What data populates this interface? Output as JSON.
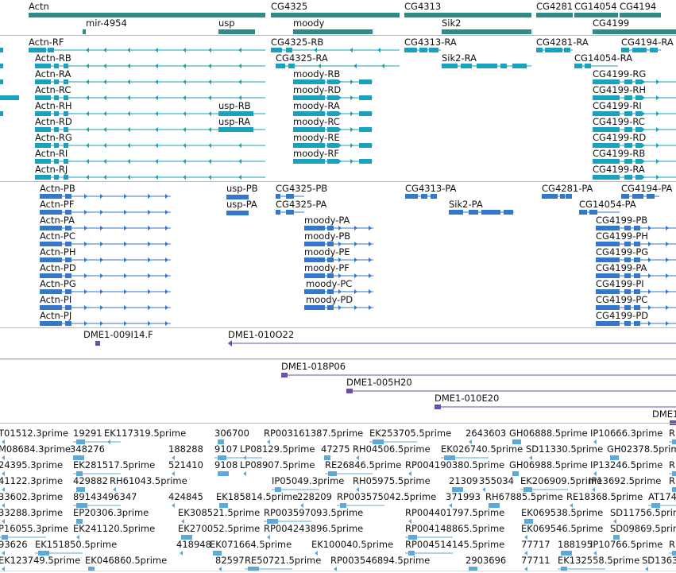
{
  "colors": {
    "gene": "#2e8b87",
    "mrna": "#1aa1bd",
    "protein": "#3377cc",
    "bac": "#6a4fb0",
    "est": "#5aaadc",
    "divider": "#b8b8b8"
  },
  "tracks": {
    "genes": {
      "features": [
        {
          "label": "Actn"
        },
        {
          "label": "mir-4954"
        },
        {
          "label": "usp"
        },
        {
          "label": "CG4325"
        },
        {
          "label": "moody"
        },
        {
          "label": "CG4313"
        },
        {
          "label": "Sik2"
        },
        {
          "label": "CG4281"
        },
        {
          "label": "CG14054"
        },
        {
          "label": "CG4194"
        },
        {
          "label": "CG4199"
        }
      ]
    },
    "transcripts": {
      "features": [
        {
          "label": "Actn-RF"
        },
        {
          "label": "Actn-RB"
        },
        {
          "label": "Actn-RA"
        },
        {
          "label": "Actn-RC"
        },
        {
          "label": "Actn-RH"
        },
        {
          "label": "Actn-RD"
        },
        {
          "label": "Actn-RG"
        },
        {
          "label": "Actn-RI"
        },
        {
          "label": "Actn-RJ"
        },
        {
          "label": "usp-RB"
        },
        {
          "label": "usp-RA"
        },
        {
          "label": "CG4325-RB"
        },
        {
          "label": "CG4325-RA"
        },
        {
          "label": "moody-RB"
        },
        {
          "label": "moody-RD"
        },
        {
          "label": "moody-RA"
        },
        {
          "label": "moody-RC"
        },
        {
          "label": "moody-RE"
        },
        {
          "label": "moody-RF"
        },
        {
          "label": "CG4313-RA"
        },
        {
          "label": "Sik2-RA"
        },
        {
          "label": "CG4281-RA"
        },
        {
          "label": "CG4194-RA"
        },
        {
          "label": "CG14054-RA"
        },
        {
          "label": "CG4199-RG"
        },
        {
          "label": "CG4199-RH"
        },
        {
          "label": "CG4199-RI"
        },
        {
          "label": "CG4199-RC"
        },
        {
          "label": "CG4199-RD"
        },
        {
          "label": "CG4199-RB"
        },
        {
          "label": "CG4199-RA"
        }
      ]
    },
    "proteins": {
      "features": [
        {
          "label": "Actn-PB"
        },
        {
          "label": "Actn-PF"
        },
        {
          "label": "Actn-PA"
        },
        {
          "label": "Actn-PC"
        },
        {
          "label": "Actn-PH"
        },
        {
          "label": "Actn-PD"
        },
        {
          "label": "Actn-PG"
        },
        {
          "label": "Actn-PI"
        },
        {
          "label": "Actn-PJ"
        },
        {
          "label": "usp-PB"
        },
        {
          "label": "usp-PA"
        },
        {
          "label": "CG4325-PB"
        },
        {
          "label": "CG4325-PA"
        },
        {
          "label": "moody-PA"
        },
        {
          "label": "moody-PB"
        },
        {
          "label": "moody-PE"
        },
        {
          "label": "moody-PF"
        },
        {
          "label": "moody-PC"
        },
        {
          "label": "moody-PD"
        },
        {
          "label": "CG4313-PA"
        },
        {
          "label": "Sik2-PA"
        },
        {
          "label": "CG4281-PA"
        },
        {
          "label": "CG4194-PA"
        },
        {
          "label": "CG14054-PA"
        },
        {
          "label": "CG4199-PB"
        },
        {
          "label": "CG4199-PH"
        },
        {
          "label": "CG4199-PG"
        },
        {
          "label": "CG4199-PA"
        },
        {
          "label": "CG4199-PI"
        },
        {
          "label": "CG4199-PC"
        },
        {
          "label": "CG4199-PD"
        }
      ]
    },
    "bacs": {
      "features": [
        {
          "label": "DME1-009I14.F"
        },
        {
          "label": "DME1-010O22"
        },
        {
          "label": "DME1-018P06"
        },
        {
          "label": "DME1-005H20"
        },
        {
          "label": "DME1-010E20"
        },
        {
          "label": "DME1"
        }
      ]
    },
    "ests": {
      "rows": [
        [
          "T01512.3prime",
          "19291",
          "EK117319.5prime",
          "306700",
          "RP003161387.5prime",
          "EK253705.5prime",
          "2643603",
          "GH06888.5prime",
          "IP10666.3prime",
          "R"
        ],
        [
          "M08684.3prime",
          "348276",
          "188288",
          "9107",
          "LP08129.5prime",
          "47275",
          "RH04506.5prime",
          "EK026740.5prime",
          "SD11330.5prime",
          "GH02378.5prime"
        ],
        [
          "24395.3prime",
          "EK281517.5prime",
          "521410",
          "9108",
          "LP08907.5prime",
          "RE26846.5prime",
          "RP004190380.5prime",
          "GH06988.5prime",
          "IP13246.5prime",
          "R"
        ],
        [
          "41122.3prime",
          "429882",
          "RH61043.5prime",
          "IP05049.3prime",
          "RH05975.5prime",
          "21309",
          "355034",
          "EK206909.5prime",
          "IP13692.5prime",
          "R"
        ],
        [
          "33602.3prime",
          "89143496347",
          "424845",
          "EK185814.5prime",
          "228209",
          "RP003575042.5prime",
          "371993",
          "RH67885.5prime",
          "RE18368.5prime",
          "AT174"
        ],
        [
          "33288.3prime",
          "EP20306.3prime",
          "EK308521.5prime",
          "RP003597093.5prime",
          "RP004401797.5prime",
          "EK069538.5prime",
          "SD11756.5prime"
        ],
        [
          "P16055.3prime",
          "EK241120.5prime",
          "EK270052.5prime",
          "RP004243896.5prime",
          "RP004148865.5prime",
          "EK069546.5prime",
          "SD09869.5prime"
        ],
        [
          "93626",
          "EK151850.5prime",
          "418948",
          "EK071664.5prime",
          "EK100040.5prime",
          "RP004514145.5prime",
          "77717",
          "188195",
          "IP10766.5prime",
          "R"
        ],
        [
          "EK123749.5prime",
          "EK046860.5prime",
          "82597",
          "RE50721.5prime",
          "RP003546894.5prime",
          "2903696",
          "77711",
          "EK132558.5prime",
          "SD1363"
        ]
      ]
    }
  }
}
